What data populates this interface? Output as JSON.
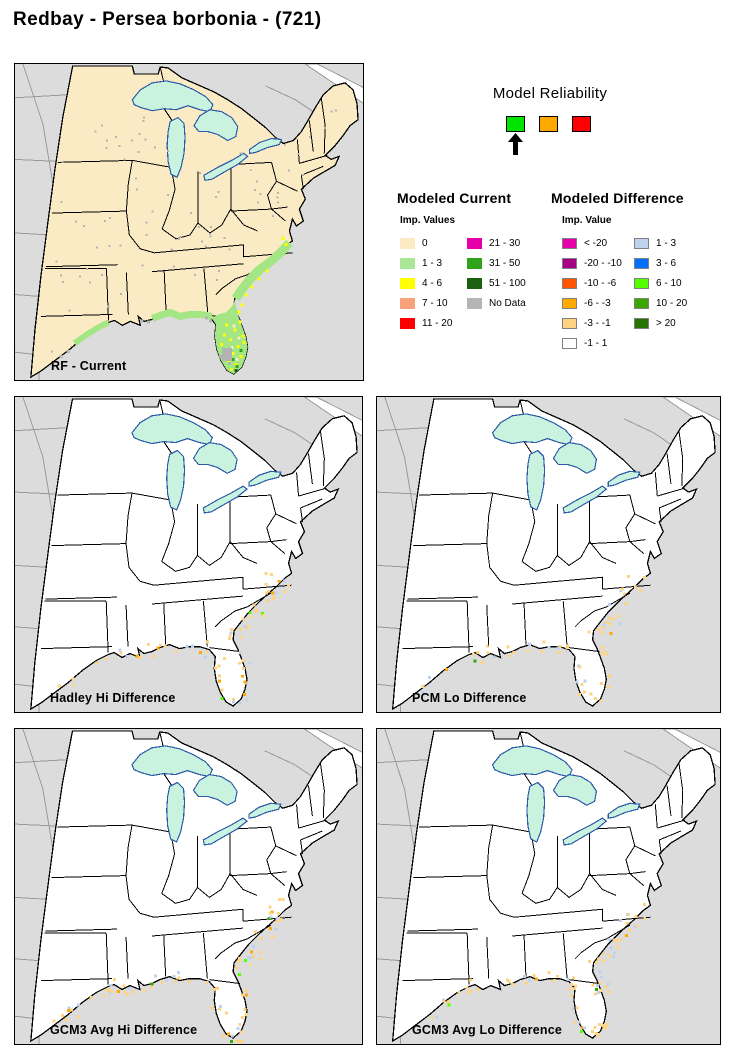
{
  "page": {
    "title": "Redbay - Persea borbonia - (721)"
  },
  "reliability": {
    "title": "Model Reliability",
    "levels": [
      {
        "name": "high",
        "color": "#00E400"
      },
      {
        "name": "medium",
        "color": "#FFA800"
      },
      {
        "name": "low",
        "color": "#FF0000"
      }
    ],
    "selected_index": 0,
    "arrow_icon": "up-arrow"
  },
  "legends": {
    "current": {
      "title": "Modeled Current",
      "subtitle": "Imp. Values",
      "items": [
        {
          "label": "0",
          "color": "#FBEAC4"
        },
        {
          "label": "1 - 3",
          "color": "#A9E697"
        },
        {
          "label": "4 - 6",
          "color": "#FFFF00"
        },
        {
          "label": "7 - 10",
          "color": "#F8A27C"
        },
        {
          "label": "11 - 20",
          "color": "#FF0000"
        },
        {
          "label": "21 - 30",
          "color": "#E600A9"
        },
        {
          "label": "31 - 50",
          "color": "#2FA41B"
        },
        {
          "label": "51 - 100",
          "color": "#1C6110"
        },
        {
          "label": "No Data",
          "color": "#B5B5B5"
        }
      ]
    },
    "difference": {
      "title": "Modeled Difference",
      "subtitle": "Imp. Value",
      "items": [
        {
          "label": "< -20",
          "color": "#E600A9"
        },
        {
          "label": "-20 - -10",
          "color": "#A80084"
        },
        {
          "label": "-10 - -6",
          "color": "#FF5500"
        },
        {
          "label": "-6 - -3",
          "color": "#FFAA00"
        },
        {
          "label": "-3 - -1",
          "color": "#FFD37F"
        },
        {
          "label": "-1 - 1",
          "color": "#FFFFFF"
        },
        {
          "label": "1 - 3",
          "color": "#BED2EE"
        },
        {
          "label": "3 - 6",
          "color": "#0070FF"
        },
        {
          "label": "6 - 10",
          "color": "#55FF00"
        },
        {
          "label": "10 - 20",
          "color": "#38A800"
        },
        {
          "label": "> 20",
          "color": "#267300"
        }
      ]
    }
  },
  "maps": [
    {
      "label": "RF - Current",
      "type": "current"
    },
    {
      "label": "Hadley Hi Difference",
      "type": "difference"
    },
    {
      "label": "PCM Lo Difference",
      "type": "difference"
    },
    {
      "label": "GCM3 Avg Hi Difference",
      "type": "difference"
    },
    {
      "label": "GCM3 Avg Lo Difference",
      "type": "difference"
    }
  ],
  "map_colors": {
    "state_fill_current": "#FAEBC5",
    "state_fill_difference": "#FFFFFF",
    "outside": "#DCDCDC",
    "state_border": "#000000",
    "neighbor_border": "#999999",
    "lake_fill": "#C9F3DF",
    "lake_border": "#2B5BA8",
    "no_data": "#B3B3B3",
    "current_band": "#A4E584",
    "current_yellow": "#FFFF00",
    "diff_decrease": "#FFD37F",
    "diff_increase": "#BED2EE",
    "diff_strong_decrease": "#FFAA00",
    "diff_gain_bright": "#55FF00",
    "diff_gain_mid": "#38A800"
  }
}
